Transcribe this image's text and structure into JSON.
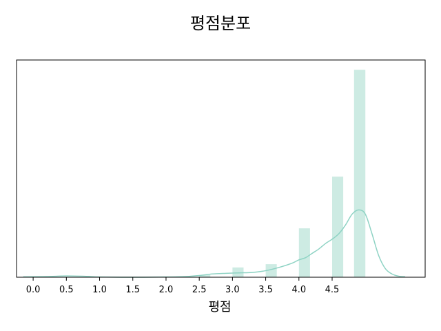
{
  "chart_data": {
    "type": "bar",
    "title": "평점분포",
    "xlabel": "평점",
    "ylabel": "",
    "x_ticks": [
      "0.0",
      "0.5",
      "1.0",
      "1.5",
      "2.0",
      "2.5",
      "3.0",
      "3.5",
      "4.0",
      "4.5"
    ],
    "xlim": [
      -0.25,
      5.9
    ],
    "ylim": [
      0,
      1
    ],
    "y_axis_visible": false,
    "grid": false,
    "histogram": {
      "bin_width": 0.167,
      "bins": [
        {
          "x0": 2.5,
          "x1": 2.667,
          "value": 0.01
        },
        {
          "x0": 3.0,
          "x1": 3.167,
          "value": 0.045
        },
        {
          "x0": 3.5,
          "x1": 3.667,
          "value": 0.06
        },
        {
          "x0": 4.0,
          "x1": 4.167,
          "value": 0.225
        },
        {
          "x0": 4.5,
          "x1": 4.667,
          "value": 0.463
        },
        {
          "x0": 4.83,
          "x1": 5.0,
          "value": 0.955
        }
      ]
    },
    "kde_curve": {
      "x": [
        -0.15,
        0.2,
        0.5,
        0.8,
        1.0,
        1.5,
        2.0,
        2.3,
        2.5,
        2.7,
        2.9,
        3.1,
        3.3,
        3.5,
        3.7,
        3.9,
        4.0,
        4.1,
        4.2,
        4.3,
        4.4,
        4.5,
        4.6,
        4.7,
        4.8,
        4.9,
        5.0,
        5.1,
        5.2,
        5.3,
        5.4,
        5.5,
        5.6
      ],
      "y": [
        0.002,
        0.003,
        0.006,
        0.004,
        0.001,
        0.0,
        0.001,
        0.003,
        0.008,
        0.015,
        0.018,
        0.02,
        0.022,
        0.03,
        0.045,
        0.065,
        0.08,
        0.09,
        0.11,
        0.13,
        0.155,
        0.175,
        0.2,
        0.24,
        0.29,
        0.31,
        0.29,
        0.2,
        0.1,
        0.04,
        0.015,
        0.005,
        0.002
      ]
    },
    "colors": {
      "bar_fill": "#cdebe3",
      "kde_line": "#8ed3c4",
      "axes": "#000000"
    }
  }
}
